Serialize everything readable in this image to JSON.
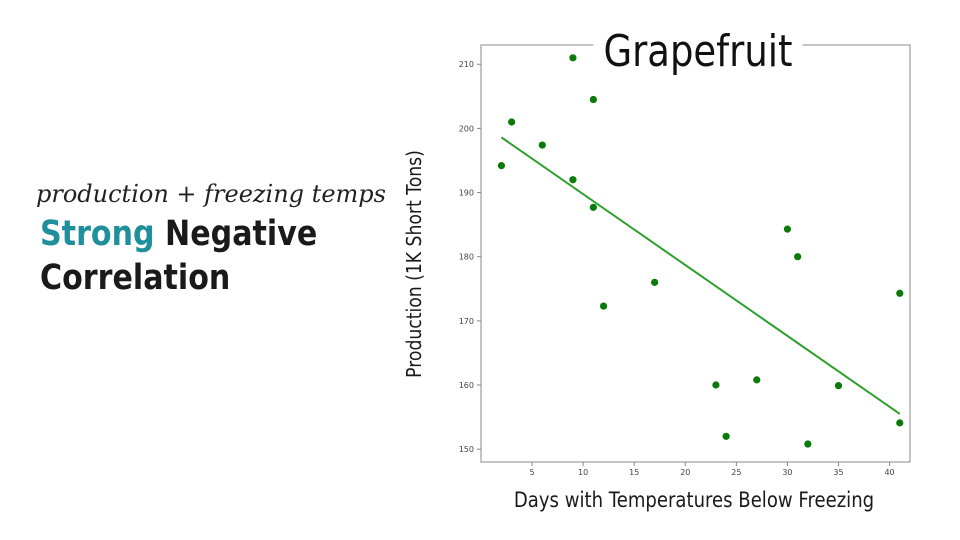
{
  "left_panel": {
    "subtitle": "production + freezing temps",
    "headline_accent": "Strong",
    "headline_rest": "Negative",
    "headline_line2": "Correlation"
  },
  "colors": {
    "accent": "#1f8f9c",
    "points": "#0a7a0a",
    "trend_line": "#2ca02c"
  },
  "chart_data": {
    "type": "scatter",
    "title": "Grapefruit",
    "xlabel": "Days with Temperatures Below Freezing",
    "ylabel": "Production (1K Short Tons)",
    "xlim": [
      0,
      42
    ],
    "ylim": [
      148,
      213
    ],
    "xticks": [
      5,
      10,
      15,
      20,
      25,
      30,
      35,
      40
    ],
    "yticks": [
      150,
      160,
      170,
      180,
      190,
      200,
      210
    ],
    "grid": false,
    "points": [
      {
        "x": 2,
        "y": 194.2
      },
      {
        "x": 3,
        "y": 201.0
      },
      {
        "x": 6,
        "y": 197.4
      },
      {
        "x": 9,
        "y": 211.0
      },
      {
        "x": 9,
        "y": 192.0
      },
      {
        "x": 11,
        "y": 204.5
      },
      {
        "x": 11,
        "y": 187.7
      },
      {
        "x": 12,
        "y": 172.3
      },
      {
        "x": 17,
        "y": 176.0
      },
      {
        "x": 23,
        "y": 160.0
      },
      {
        "x": 24,
        "y": 152.0
      },
      {
        "x": 27,
        "y": 160.8
      },
      {
        "x": 30,
        "y": 184.3
      },
      {
        "x": 31,
        "y": 180.0
      },
      {
        "x": 32,
        "y": 150.8
      },
      {
        "x": 35,
        "y": 159.9
      },
      {
        "x": 41,
        "y": 174.3
      },
      {
        "x": 41,
        "y": 154.1
      }
    ],
    "trend_line": {
      "x": [
        2,
        41
      ],
      "y": [
        198.6,
        155.5
      ]
    }
  }
}
